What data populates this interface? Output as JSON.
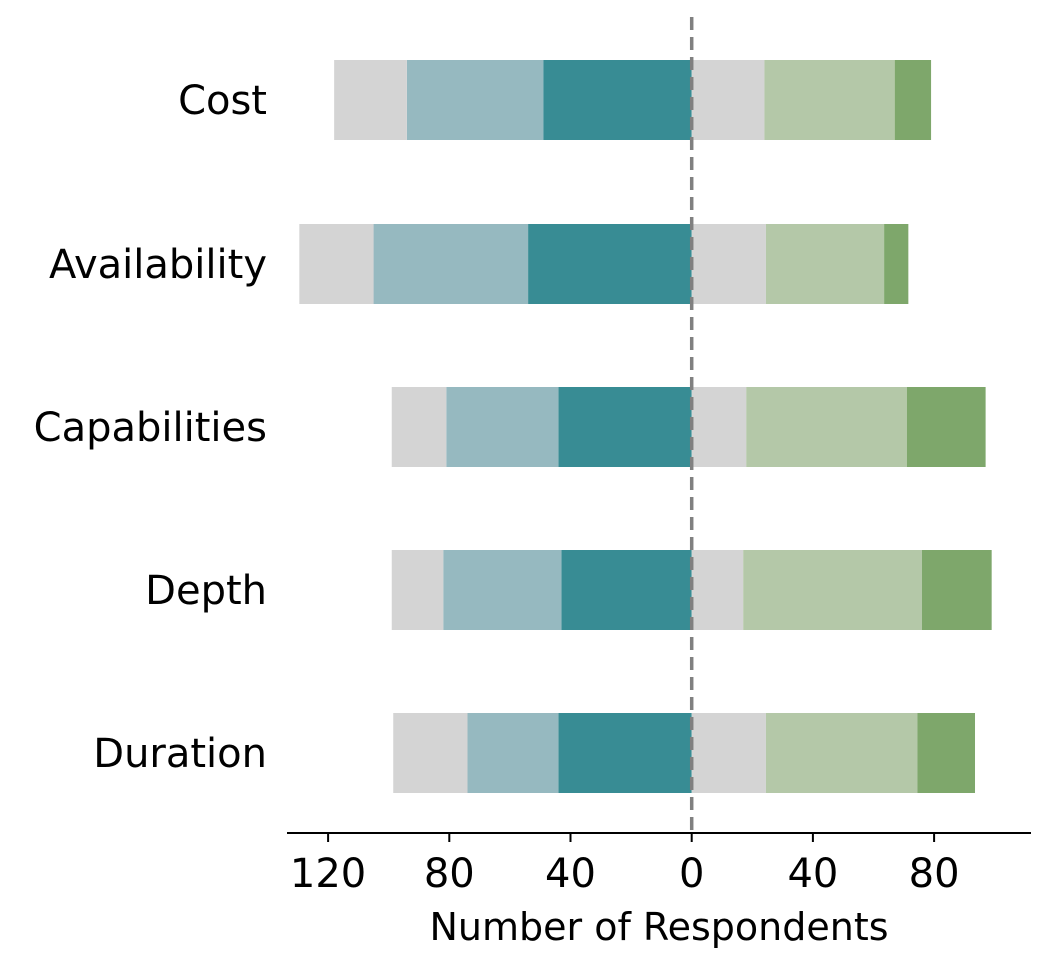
{
  "chart_data": {
    "type": "bar",
    "orientation": "horizontal",
    "stacking": "diverging",
    "categories": [
      "Cost",
      "Availability",
      "Capabilities",
      "Depth",
      "Duration"
    ],
    "series": [
      {
        "values": [
          -49,
          -54,
          -44,
          -43,
          -44
        ],
        "color": "#388c94"
      },
      {
        "values": [
          -45,
          -51,
          -37,
          -39,
          -30
        ],
        "color": "#96b9c0"
      },
      {
        "values": [
          -24,
          -24.5,
          -18,
          -17,
          -24.5
        ],
        "color": "#d4d4d4"
      },
      {
        "values": [
          24,
          24.5,
          18,
          17,
          24.5
        ],
        "color": "#d4d4d4"
      },
      {
        "values": [
          43,
          39,
          53,
          59,
          50
        ],
        "color": "#b4c8a8"
      },
      {
        "values": [
          12,
          8,
          26,
          23,
          19
        ],
        "color": "#7ea76b"
      }
    ],
    "xlabel": "Number of Respondents",
    "ylabel": "",
    "xlim": [
      -134,
      113
    ],
    "x_ticks": [
      {
        "value": -120,
        "label": "120"
      },
      {
        "value": -80,
        "label": "80"
      },
      {
        "value": -40,
        "label": "40"
      },
      {
        "value": 0,
        "label": "0"
      },
      {
        "value": 40,
        "label": "40"
      },
      {
        "value": 80,
        "label": "80"
      }
    ],
    "center_line": {
      "value": 0,
      "style": "dashed",
      "color": "#808080"
    },
    "grid": false,
    "legend": "none"
  }
}
